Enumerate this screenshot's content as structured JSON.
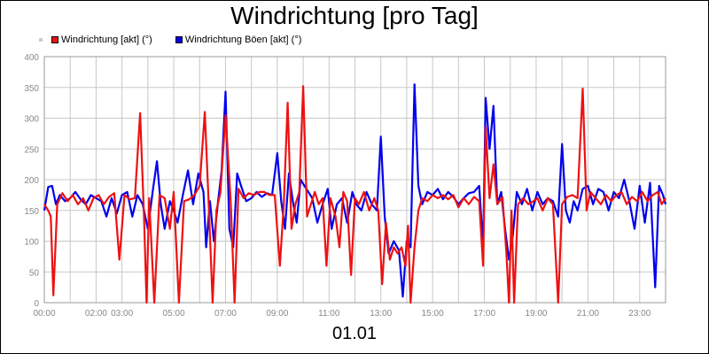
{
  "title": "Windrichtung [pro Tag]",
  "legend": [
    {
      "label": "Windrichtung [akt] (°)",
      "color": "#ee1111"
    },
    {
      "label": "Windrichtung Böen [akt] (°)",
      "color": "#0000ee"
    }
  ],
  "xlabel": "01.01",
  "chart_data": {
    "type": "line",
    "title": "Windrichtung [pro Tag]",
    "xlabel": "01.01",
    "ylabel": "",
    "ylim": [
      0,
      400
    ],
    "xlim": [
      0,
      24
    ],
    "yticks": [
      0,
      50,
      100,
      150,
      200,
      250,
      300,
      350,
      400
    ],
    "xticks": [
      {
        "x": 0,
        "label": "00:00"
      },
      {
        "x": 2,
        "label": "02:00"
      },
      {
        "x": 3,
        "label": "03:00"
      },
      {
        "x": 5,
        "label": "05:00"
      },
      {
        "x": 7,
        "label": "07:00"
      },
      {
        "x": 9,
        "label": "09:00"
      },
      {
        "x": 11,
        "label": "11:00"
      },
      {
        "x": 13,
        "label": "13:00"
      },
      {
        "x": 15,
        "label": "15:00"
      },
      {
        "x": 17,
        "label": "17:00"
      },
      {
        "x": 19,
        "label": "19:00"
      },
      {
        "x": 21,
        "label": "21:00"
      },
      {
        "x": 23,
        "label": "23:00"
      }
    ],
    "grid": true,
    "legend_position": "top-left",
    "series": [
      {
        "name": "Windrichtung [akt] (°)",
        "color": "#ee1111",
        "points": [
          [
            0.0,
            160
          ],
          [
            0.15,
            150
          ],
          [
            0.25,
            140
          ],
          [
            0.35,
            12
          ],
          [
            0.5,
            160
          ],
          [
            0.7,
            178
          ],
          [
            0.9,
            165
          ],
          [
            1.1,
            175
          ],
          [
            1.3,
            160
          ],
          [
            1.5,
            170
          ],
          [
            1.7,
            150
          ],
          [
            1.9,
            170
          ],
          [
            2.1,
            175
          ],
          [
            2.3,
            160
          ],
          [
            2.5,
            172
          ],
          [
            2.7,
            178
          ],
          [
            2.9,
            70
          ],
          [
            3.1,
            175
          ],
          [
            3.3,
            168
          ],
          [
            3.5,
            170
          ],
          [
            3.7,
            308
          ],
          [
            3.85,
            140
          ],
          [
            3.95,
            0
          ],
          [
            4.05,
            170
          ],
          [
            4.25,
            0
          ],
          [
            4.45,
            175
          ],
          [
            4.65,
            170
          ],
          [
            4.85,
            120
          ],
          [
            5.0,
            180
          ],
          [
            5.2,
            0
          ],
          [
            5.4,
            165
          ],
          [
            5.6,
            168
          ],
          [
            5.8,
            175
          ],
          [
            6.0,
            190
          ],
          [
            6.2,
            310
          ],
          [
            6.35,
            160
          ],
          [
            6.5,
            0
          ],
          [
            6.65,
            150
          ],
          [
            6.8,
            178
          ],
          [
            7.0,
            305
          ],
          [
            7.2,
            165
          ],
          [
            7.35,
            0
          ],
          [
            7.5,
            185
          ],
          [
            7.7,
            170
          ],
          [
            7.9,
            178
          ],
          [
            8.1,
            175
          ],
          [
            8.3,
            180
          ],
          [
            8.5,
            180
          ],
          [
            8.7,
            175
          ],
          [
            8.9,
            175
          ],
          [
            9.1,
            60
          ],
          [
            9.25,
            160
          ],
          [
            9.4,
            325
          ],
          [
            9.55,
            120
          ],
          [
            9.7,
            160
          ],
          [
            9.85,
            180
          ],
          [
            10.0,
            352
          ],
          [
            10.15,
            140
          ],
          [
            10.3,
            160
          ],
          [
            10.45,
            180
          ],
          [
            10.6,
            160
          ],
          [
            10.75,
            170
          ],
          [
            10.9,
            60
          ],
          [
            11.05,
            170
          ],
          [
            11.25,
            140
          ],
          [
            11.4,
            90
          ],
          [
            11.55,
            180
          ],
          [
            11.7,
            165
          ],
          [
            11.85,
            45
          ],
          [
            12.0,
            170
          ],
          [
            12.15,
            160
          ],
          [
            12.35,
            180
          ],
          [
            12.55,
            150
          ],
          [
            12.75,
            170
          ],
          [
            12.9,
            150
          ],
          [
            13.05,
            30
          ],
          [
            13.2,
            130
          ],
          [
            13.35,
            70
          ],
          [
            13.5,
            90
          ],
          [
            13.65,
            80
          ],
          [
            13.8,
            90
          ],
          [
            13.95,
            60
          ],
          [
            14.05,
            125
          ],
          [
            14.15,
            0
          ],
          [
            14.3,
            90
          ],
          [
            14.45,
            150
          ],
          [
            14.6,
            170
          ],
          [
            14.8,
            165
          ],
          [
            15.0,
            175
          ],
          [
            15.2,
            170
          ],
          [
            15.4,
            175
          ],
          [
            15.6,
            168
          ],
          [
            15.8,
            175
          ],
          [
            16.0,
            155
          ],
          [
            16.2,
            170
          ],
          [
            16.4,
            160
          ],
          [
            16.6,
            172
          ],
          [
            16.8,
            165
          ],
          [
            16.95,
            60
          ],
          [
            17.05,
            285
          ],
          [
            17.2,
            170
          ],
          [
            17.35,
            225
          ],
          [
            17.5,
            160
          ],
          [
            17.7,
            172
          ],
          [
            17.85,
            80
          ],
          [
            17.95,
            0
          ],
          [
            18.05,
            150
          ],
          [
            18.15,
            0
          ],
          [
            18.3,
            160
          ],
          [
            18.5,
            170
          ],
          [
            18.7,
            160
          ],
          [
            18.9,
            165
          ],
          [
            19.05,
            170
          ],
          [
            19.25,
            150
          ],
          [
            19.45,
            170
          ],
          [
            19.65,
            160
          ],
          [
            19.85,
            0
          ],
          [
            20.0,
            160
          ],
          [
            20.2,
            172
          ],
          [
            20.4,
            175
          ],
          [
            20.6,
            170
          ],
          [
            20.8,
            348
          ],
          [
            20.95,
            150
          ],
          [
            21.1,
            180
          ],
          [
            21.3,
            170
          ],
          [
            21.5,
            160
          ],
          [
            21.7,
            175
          ],
          [
            21.9,
            165
          ],
          [
            22.1,
            175
          ],
          [
            22.3,
            180
          ],
          [
            22.5,
            160
          ],
          [
            22.7,
            172
          ],
          [
            22.9,
            165
          ],
          [
            23.1,
            180
          ],
          [
            23.3,
            165
          ],
          [
            23.5,
            175
          ],
          [
            23.7,
            180
          ],
          [
            23.85,
            160
          ],
          [
            24.0,
            170
          ]
        ]
      },
      {
        "name": "Windrichtung Böen [akt] (°)",
        "color": "#0000ee",
        "points": [
          [
            0.0,
            150
          ],
          [
            0.15,
            188
          ],
          [
            0.3,
            190
          ],
          [
            0.45,
            160
          ],
          [
            0.6,
            175
          ],
          [
            0.8,
            165
          ],
          [
            1.0,
            170
          ],
          [
            1.2,
            180
          ],
          [
            1.4,
            168
          ],
          [
            1.6,
            160
          ],
          [
            1.8,
            175
          ],
          [
            2.0,
            170
          ],
          [
            2.2,
            165
          ],
          [
            2.4,
            140
          ],
          [
            2.6,
            170
          ],
          [
            2.8,
            145
          ],
          [
            3.0,
            175
          ],
          [
            3.2,
            180
          ],
          [
            3.4,
            140
          ],
          [
            3.6,
            175
          ],
          [
            3.8,
            160
          ],
          [
            4.0,
            120
          ],
          [
            4.2,
            185
          ],
          [
            4.35,
            230
          ],
          [
            4.5,
            160
          ],
          [
            4.65,
            120
          ],
          [
            4.85,
            165
          ],
          [
            5.0,
            150
          ],
          [
            5.15,
            130
          ],
          [
            5.35,
            175
          ],
          [
            5.55,
            215
          ],
          [
            5.75,
            160
          ],
          [
            5.95,
            210
          ],
          [
            6.15,
            180
          ],
          [
            6.25,
            90
          ],
          [
            6.4,
            165
          ],
          [
            6.55,
            100
          ],
          [
            6.7,
            160
          ],
          [
            6.85,
            215
          ],
          [
            7.0,
            343
          ],
          [
            7.15,
            120
          ],
          [
            7.3,
            90
          ],
          [
            7.45,
            210
          ],
          [
            7.6,
            190
          ],
          [
            7.8,
            165
          ],
          [
            8.0,
            170
          ],
          [
            8.2,
            180
          ],
          [
            8.4,
            172
          ],
          [
            8.6,
            178
          ],
          [
            8.8,
            175
          ],
          [
            9.0,
            243
          ],
          [
            9.15,
            165
          ],
          [
            9.3,
            120
          ],
          [
            9.45,
            210
          ],
          [
            9.6,
            165
          ],
          [
            9.75,
            130
          ],
          [
            9.9,
            200
          ],
          [
            10.05,
            190
          ],
          [
            10.2,
            180
          ],
          [
            10.35,
            170
          ],
          [
            10.55,
            130
          ],
          [
            10.75,
            160
          ],
          [
            10.95,
            185
          ],
          [
            11.1,
            120
          ],
          [
            11.3,
            160
          ],
          [
            11.5,
            170
          ],
          [
            11.7,
            130
          ],
          [
            11.9,
            180
          ],
          [
            12.05,
            160
          ],
          [
            12.25,
            150
          ],
          [
            12.45,
            180
          ],
          [
            12.65,
            160
          ],
          [
            12.85,
            150
          ],
          [
            13.0,
            270
          ],
          [
            13.15,
            140
          ],
          [
            13.3,
            80
          ],
          [
            13.5,
            100
          ],
          [
            13.7,
            85
          ],
          [
            13.85,
            10
          ],
          [
            14.0,
            100
          ],
          [
            14.15,
            90
          ],
          [
            14.3,
            355
          ],
          [
            14.45,
            190
          ],
          [
            14.6,
            160
          ],
          [
            14.8,
            180
          ],
          [
            15.0,
            175
          ],
          [
            15.2,
            185
          ],
          [
            15.4,
            168
          ],
          [
            15.6,
            180
          ],
          [
            15.8,
            172
          ],
          [
            16.0,
            160
          ],
          [
            16.2,
            170
          ],
          [
            16.4,
            178
          ],
          [
            16.6,
            180
          ],
          [
            16.8,
            190
          ],
          [
            16.95,
            90
          ],
          [
            17.05,
            333
          ],
          [
            17.2,
            250
          ],
          [
            17.35,
            320
          ],
          [
            17.5,
            160
          ],
          [
            17.65,
            180
          ],
          [
            17.8,
            120
          ],
          [
            17.95,
            70
          ],
          [
            18.1,
            110
          ],
          [
            18.25,
            180
          ],
          [
            18.45,
            160
          ],
          [
            18.65,
            185
          ],
          [
            18.85,
            150
          ],
          [
            19.05,
            180
          ],
          [
            19.25,
            160
          ],
          [
            19.45,
            170
          ],
          [
            19.65,
            165
          ],
          [
            19.85,
            140
          ],
          [
            20.0,
            258
          ],
          [
            20.15,
            150
          ],
          [
            20.3,
            130
          ],
          [
            20.45,
            165
          ],
          [
            20.6,
            150
          ],
          [
            20.8,
            185
          ],
          [
            21.0,
            190
          ],
          [
            21.2,
            160
          ],
          [
            21.4,
            185
          ],
          [
            21.6,
            180
          ],
          [
            21.8,
            150
          ],
          [
            22.0,
            180
          ],
          [
            22.2,
            170
          ],
          [
            22.4,
            200
          ],
          [
            22.6,
            165
          ],
          [
            22.8,
            120
          ],
          [
            23.0,
            190
          ],
          [
            23.2,
            130
          ],
          [
            23.4,
            195
          ],
          [
            23.6,
            25
          ],
          [
            23.75,
            190
          ],
          [
            23.9,
            175
          ],
          [
            24.0,
            160
          ]
        ]
      }
    ]
  }
}
